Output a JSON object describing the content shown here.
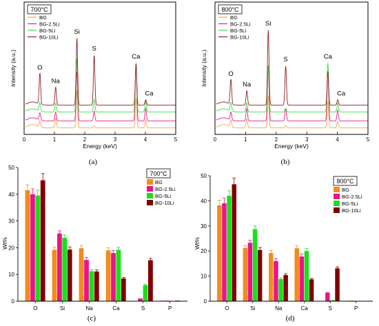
{
  "colors": {
    "bg": "#F5A25A",
    "bg25": "#E0217F",
    "bg5": "#3DDC46",
    "bg10": "#8E1E1E",
    "bar_bg": "#F58A1F",
    "bar_bg25": "#E8158A",
    "bar_bg5": "#19E019",
    "bar_bg10": "#800000"
  },
  "panels": [
    {
      "id": "a",
      "letter": "(a)",
      "temperature": "700°C",
      "xlabel": "Energy (keV)",
      "ylabel": "Intensity (a.u.)",
      "x_ticks": [
        "0",
        "1",
        "2",
        "3",
        "4",
        "5"
      ],
      "legend": [
        "BG",
        "BG-2.5Li",
        "BG-5Li",
        "BG-10Li"
      ],
      "peak_labels": [
        {
          "text": "O",
          "x": 0.52
        },
        {
          "text": "Na",
          "x": 1.04
        },
        {
          "text": "Si",
          "x": 1.74
        },
        {
          "text": "S",
          "x": 2.31
        },
        {
          "text": "Ca",
          "x": 3.69
        },
        {
          "text": "Ca",
          "x": 4.01
        }
      ]
    },
    {
      "id": "b",
      "letter": "(b)",
      "temperature": "800°C",
      "xlabel": "Energy (keV)",
      "ylabel": "Intensity (a.u.)",
      "x_ticks": [
        "0",
        "1",
        "2",
        "3",
        "4",
        "5"
      ],
      "legend": [
        "BG",
        "BG-2.5Li",
        "BG-5Li",
        "BG-10Li"
      ],
      "peak_labels": [
        {
          "text": "O",
          "x": 0.52
        },
        {
          "text": "Na",
          "x": 1.04
        },
        {
          "text": "Si",
          "x": 1.74
        },
        {
          "text": "S",
          "x": 2.31
        },
        {
          "text": "Ca",
          "x": 3.69
        },
        {
          "text": "Ca",
          "x": 4.01
        }
      ]
    },
    {
      "id": "c",
      "letter": "(c)",
      "temperature": "700°C",
      "ylabel": "Wt%",
      "y_ticks": [
        "0",
        "10",
        "20",
        "30",
        "40",
        "50"
      ],
      "legend": [
        "BG",
        "BG-2.5Li",
        "BG-5Li",
        "BG-10Li"
      ]
    },
    {
      "id": "d",
      "letter": "(d)",
      "temperature": "800°C",
      "ylabel": "Wt%",
      "y_ticks": [
        "0",
        "10",
        "20",
        "30",
        "40",
        "50"
      ],
      "legend": [
        "BG",
        "BG-2.5Li",
        "BG-5Li",
        "BG-10Li"
      ]
    }
  ],
  "chart_data": [
    {
      "panel": "a",
      "type": "line",
      "xlabel": "Energy (keV)",
      "ylabel": "Intensity (a.u.)",
      "xlim": [
        0,
        5
      ],
      "series": [
        {
          "name": "BG",
          "peaks": [
            [
              0.52,
              0.7
            ],
            [
              1.04,
              1.1
            ],
            [
              1.74,
              4.2
            ],
            [
              2.31,
              0.25
            ],
            [
              3.69,
              3.3
            ],
            [
              4.01,
              0.9
            ]
          ]
        },
        {
          "name": "BG-2.5Li",
          "peaks": [
            [
              0.52,
              0.8
            ],
            [
              1.04,
              1.0
            ],
            [
              1.74,
              5.5
            ],
            [
              2.31,
              1.1
            ],
            [
              3.69,
              6.5
            ],
            [
              4.01,
              1.4
            ]
          ]
        },
        {
          "name": "BG-5Li",
          "peaks": [
            [
              0.52,
              1.0
            ],
            [
              1.04,
              1.0
            ],
            [
              1.74,
              6.0
            ],
            [
              2.31,
              1.4
            ],
            [
              3.69,
              5.5
            ],
            [
              4.01,
              1.2
            ]
          ]
        },
        {
          "name": "BG-10Li",
          "peaks": [
            [
              0.52,
              3.5
            ],
            [
              1.04,
              2.0
            ],
            [
              1.74,
              7.5
            ],
            [
              2.31,
              5.6
            ],
            [
              3.69,
              4.6
            ],
            [
              4.01,
              0.6
            ]
          ]
        }
      ]
    },
    {
      "panel": "b",
      "type": "line",
      "xlabel": "Energy (keV)",
      "ylabel": "Intensity (a.u.)",
      "xlim": [
        0,
        5
      ],
      "series": [
        {
          "name": "BG",
          "peaks": [
            [
              0.52,
              0.8
            ],
            [
              1.04,
              1.0
            ],
            [
              1.74,
              3.6
            ],
            [
              2.31,
              0.25
            ],
            [
              3.69,
              3.0
            ],
            [
              4.01,
              0.7
            ]
          ]
        },
        {
          "name": "BG-2.5Li",
          "peaks": [
            [
              0.52,
              0.9
            ],
            [
              1.04,
              1.4
            ],
            [
              1.74,
              6.2
            ],
            [
              2.31,
              1.4
            ],
            [
              3.69,
              5.6
            ],
            [
              4.01,
              1.2
            ]
          ]
        },
        {
          "name": "BG-5Li",
          "peaks": [
            [
              0.52,
              1.0
            ],
            [
              1.04,
              1.0
            ],
            [
              1.74,
              5.2
            ],
            [
              2.31,
              0.4
            ],
            [
              3.69,
              5.5
            ],
            [
              4.01,
              1.0
            ]
          ]
        },
        {
          "name": "BG-10Li",
          "peaks": [
            [
              0.52,
              2.8
            ],
            [
              1.04,
              1.6
            ],
            [
              1.74,
              8.4
            ],
            [
              2.31,
              4.4
            ],
            [
              3.69,
              3.8
            ],
            [
              4.01,
              0.6
            ]
          ]
        }
      ]
    },
    {
      "panel": "c",
      "type": "bar",
      "ylabel": "Wt%",
      "ylim": [
        0,
        50
      ],
      "categories": [
        "O",
        "Si",
        "Na",
        "Ca",
        "S",
        "P"
      ],
      "series": [
        {
          "name": "BG",
          "values": [
            41.5,
            19.2,
            19.8,
            19.0,
            0,
            0.2
          ],
          "errors": [
            2.0,
            1.0,
            1.0,
            1.0,
            0,
            0
          ]
        },
        {
          "name": "BG-2.5Li",
          "values": [
            40.0,
            25.3,
            15.4,
            18.0,
            1.0,
            0.2
          ],
          "errors": [
            2.0,
            1.0,
            1.0,
            1.0,
            0,
            0
          ]
        },
        {
          "name": "BG-5Li",
          "values": [
            39.5,
            23.7,
            11.2,
            19.2,
            6.0,
            0.1
          ],
          "errors": [
            2.0,
            1.0,
            0.6,
            1.0,
            0.4,
            0
          ]
        },
        {
          "name": "BG-10Li",
          "values": [
            45.2,
            19.3,
            11.1,
            8.5,
            15.3,
            0.2
          ],
          "errors": [
            2.5,
            1.0,
            0.6,
            0.4,
            0.7,
            0
          ]
        }
      ]
    },
    {
      "panel": "d",
      "type": "bar",
      "ylabel": "Wt%",
      "ylim": [
        0,
        50
      ],
      "categories": [
        "O",
        "Si",
        "Na",
        "Ca",
        "S",
        "P"
      ],
      "series": [
        {
          "name": "BG",
          "values": [
            38.2,
            21.2,
            19.2,
            21.1,
            0,
            0.2
          ],
          "errors": [
            2.0,
            1.0,
            1.0,
            1.0,
            0,
            0
          ]
        },
        {
          "name": "BG-2.5Li",
          "values": [
            39.0,
            23.3,
            16.0,
            17.8,
            3.3,
            0.2
          ],
          "errors": [
            2.0,
            1.0,
            1.0,
            1.0,
            0.2,
            0
          ]
        },
        {
          "name": "BG-5Li",
          "values": [
            42.0,
            28.7,
            8.8,
            20.0,
            0.4,
            0.1
          ],
          "errors": [
            2.0,
            1.3,
            0.5,
            1.0,
            0,
            0
          ]
        },
        {
          "name": "BG-10Li",
          "values": [
            46.6,
            20.4,
            10.4,
            8.7,
            13.1,
            0.1
          ],
          "errors": [
            2.5,
            1.0,
            0.6,
            0.4,
            0.6,
            0
          ]
        }
      ]
    }
  ]
}
